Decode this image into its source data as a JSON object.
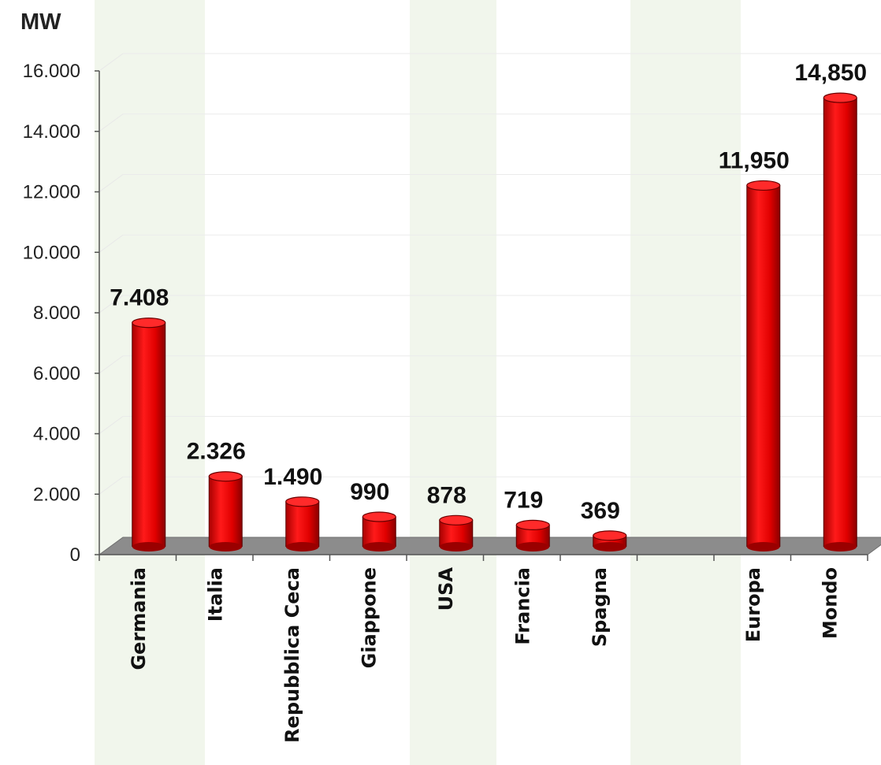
{
  "chart_data": {
    "type": "bar",
    "title": "",
    "ylabel": "MW",
    "xlabel": "",
    "categories": [
      "Germania",
      "Italia",
      "Repubblica Ceca",
      "Giappone",
      "USA",
      "Francia",
      "Spagna",
      "",
      "Europa",
      "Mondo"
    ],
    "values": [
      7408,
      2326,
      1490,
      990,
      878,
      719,
      369,
      null,
      11950,
      14850
    ],
    "data_labels": [
      "7.408",
      "2.326",
      "1.490",
      "990",
      "878",
      "719",
      "369",
      "",
      "11,950",
      "14,850"
    ],
    "ylim": [
      0,
      16000
    ],
    "yticks": [
      0,
      2000,
      4000,
      6000,
      8000,
      10000,
      12000,
      14000,
      16000
    ],
    "ytick_labels": [
      "0",
      "2.000",
      "4.000",
      "6.000",
      "8.000",
      "10.000",
      "12.000",
      "14.000",
      "16.000"
    ],
    "grid": true,
    "bar_color": "#e41414",
    "floor_color": "#8c8c8c",
    "background_color": "#ffffff"
  }
}
